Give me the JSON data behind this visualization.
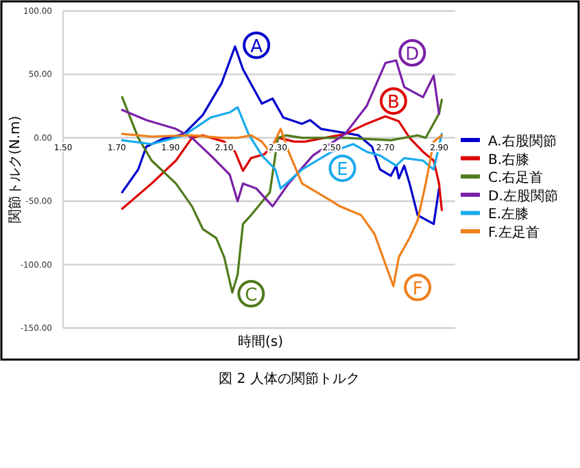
{
  "chart_data": {
    "type": "line",
    "xlabel": "時間(s)",
    "ylabel": "関節トルク(N.m)",
    "xlim": [
      1.5,
      2.96
    ],
    "ylim": [
      -150,
      100
    ],
    "xticks": [
      {
        "value": 1.5,
        "label": "1.50"
      },
      {
        "value": 1.7,
        "label": "1.70"
      },
      {
        "value": 1.9,
        "label": "1.90"
      },
      {
        "value": 2.1,
        "label": "2.10"
      },
      {
        "value": 2.3,
        "label": "2.30"
      },
      {
        "value": 2.5,
        "label": "2.50"
      },
      {
        "value": 2.7,
        "label": "2.70"
      },
      {
        "value": 2.9,
        "label": "2.90"
      }
    ],
    "yticks": [
      {
        "value": 100,
        "label": "100.00"
      },
      {
        "value": 50,
        "label": "50.00"
      },
      {
        "value": 0,
        "label": "0.00"
      },
      {
        "value": -50,
        "label": "-50.00"
      },
      {
        "value": -100,
        "label": "-100.00"
      },
      {
        "value": -150,
        "label": "-150.00"
      }
    ],
    "grid": "y",
    "legend": "right",
    "marker": "none",
    "line_style": "solid",
    "series": [
      {
        "name": "A.右股関節",
        "color": "#0000cc",
        "x": [
          1.72,
          1.78,
          1.81,
          1.87,
          1.95,
          2.02,
          2.09,
          2.14,
          2.17,
          2.24,
          2.28,
          2.32,
          2.39,
          2.42,
          2.46,
          2.6,
          2.65,
          2.68,
          2.72,
          2.74,
          2.75,
          2.77,
          2.79,
          2.82,
          2.88,
          2.9
        ],
        "values": [
          -43,
          -25,
          -7,
          -1,
          3,
          18,
          43,
          72,
          54,
          27,
          31,
          16,
          11,
          14,
          7,
          2,
          -7,
          -25,
          -30,
          -22,
          -32,
          -22,
          -36,
          -61,
          -68,
          -40
        ]
      },
      {
        "name": "B.右膝",
        "color": "#dd0000",
        "x": [
          1.72,
          1.83,
          1.92,
          1.98,
          2.02,
          2.1,
          2.14,
          2.17,
          2.2,
          2.25,
          2.3,
          2.36,
          2.4,
          2.55,
          2.63,
          2.7,
          2.75,
          2.79,
          2.84,
          2.88,
          2.9,
          2.91
        ],
        "values": [
          -56,
          -36,
          -18,
          0,
          2,
          -3,
          -11,
          -26,
          -16,
          -13,
          0,
          -3,
          -3,
          3,
          11,
          17,
          13,
          0,
          -11,
          -18,
          -36,
          -57
        ]
      },
      {
        "name": "C.右足首",
        "color": "#4f7a1a",
        "x": [
          1.72,
          1.78,
          1.83,
          1.92,
          1.98,
          2.02,
          2.07,
          2.1,
          2.13,
          2.15,
          2.17,
          2.2,
          2.27,
          2.3,
          2.33,
          2.39,
          2.55,
          2.72,
          2.82,
          2.85,
          2.9,
          2.91
        ],
        "values": [
          32,
          0,
          -18,
          -36,
          -54,
          -72,
          -79,
          -94,
          -122,
          -108,
          -68,
          -61,
          -43,
          0,
          2,
          0,
          0,
          -2,
          2,
          0,
          19,
          30
        ]
      },
      {
        "name": "D.左股関節",
        "color": "#7a1fa8",
        "x": [
          1.72,
          1.81,
          1.92,
          1.98,
          2.05,
          2.12,
          2.15,
          2.17,
          2.22,
          2.28,
          2.3,
          2.34,
          2.43,
          2.55,
          2.63,
          2.7,
          2.74,
          2.77,
          2.84,
          2.88,
          2.9
        ],
        "values": [
          22,
          14,
          7,
          0,
          -14,
          -29,
          -50,
          -36,
          -40,
          -54,
          -48,
          -36,
          -14,
          3,
          25,
          59,
          61,
          40,
          32,
          49,
          19
        ]
      },
      {
        "name": "E.左膝",
        "color": "#19aaee",
        "x": [
          1.72,
          1.83,
          1.95,
          2.05,
          2.12,
          2.15,
          2.19,
          2.24,
          2.29,
          2.31,
          2.39,
          2.5,
          2.58,
          2.63,
          2.68,
          2.74,
          2.77,
          2.84,
          2.88,
          2.91
        ],
        "values": [
          -2,
          -5,
          2,
          16,
          20,
          24,
          3,
          -14,
          -25,
          -40,
          -25,
          -11,
          -5,
          -11,
          -14,
          -22,
          -16,
          -18,
          -25,
          3
        ]
      },
      {
        "name": "F.左足首",
        "color": "#f07f1a",
        "x": [
          1.72,
          1.83,
          1.98,
          2.09,
          2.15,
          2.2,
          2.24,
          2.27,
          2.31,
          2.34,
          2.39,
          2.5,
          2.53,
          2.61,
          2.66,
          2.73,
          2.75,
          2.79,
          2.82,
          2.85,
          2.88,
          2.91
        ],
        "values": [
          3,
          1,
          2,
          0,
          0,
          2,
          -3,
          -11,
          7,
          -11,
          -36,
          -50,
          -54,
          -61,
          -76,
          -117,
          -94,
          -79,
          -65,
          -36,
          -3,
          2
        ]
      }
    ],
    "annotations": [
      {
        "text": "A",
        "x": 2.22,
        "y": 73
      },
      {
        "text": "B",
        "x": 2.73,
        "y": 29
      },
      {
        "text": "C",
        "x": 2.2,
        "y": -123
      },
      {
        "text": "D",
        "x": 2.8,
        "y": 67
      },
      {
        "text": "E",
        "x": 2.54,
        "y": -24
      },
      {
        "text": "F",
        "x": 2.82,
        "y": -118
      },
      "図 2 人体の関節トルク"
    ]
  }
}
